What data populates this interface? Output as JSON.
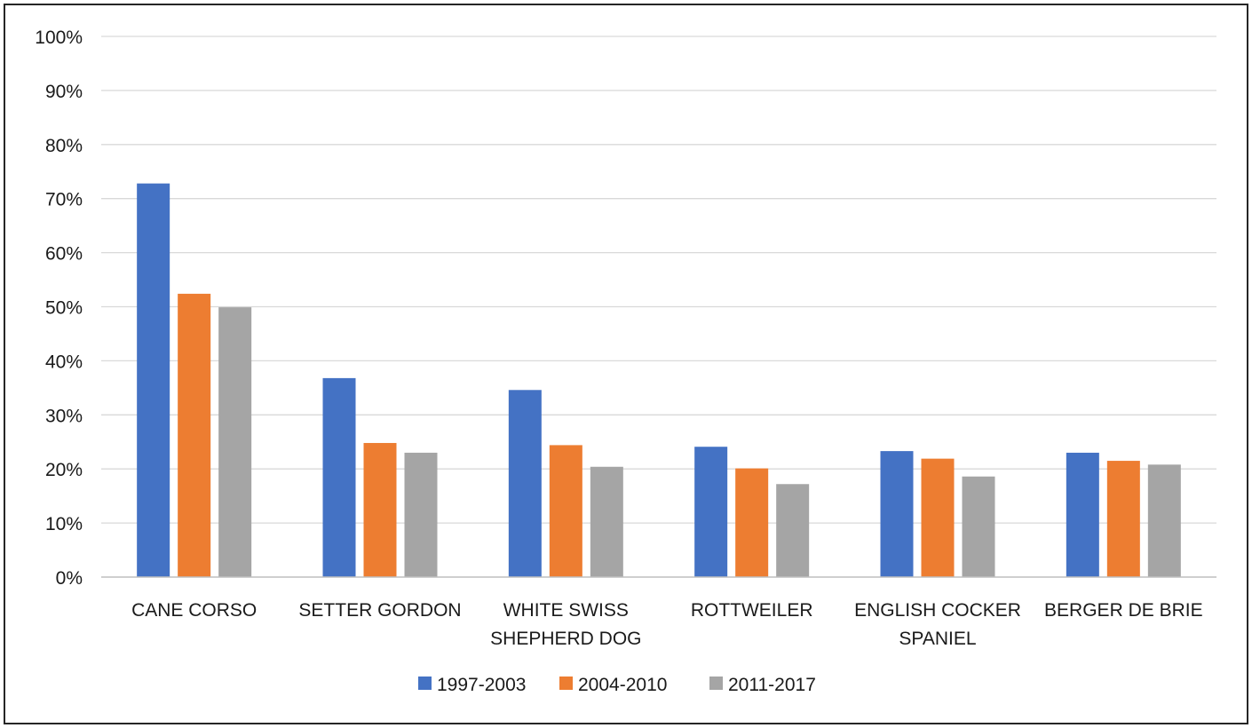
{
  "chart_data": {
    "type": "bar",
    "title": "",
    "xlabel": "",
    "ylabel": "",
    "ylim": [
      0,
      100
    ],
    "y_ticks": [
      "0%",
      "10%",
      "20%",
      "30%",
      "40%",
      "50%",
      "60%",
      "70%",
      "80%",
      "90%",
      "100%"
    ],
    "grid": true,
    "legend_position": "bottom",
    "categories": [
      [
        "CANE CORSO"
      ],
      [
        "SETTER GORDON"
      ],
      [
        "WHITE SWISS",
        "SHEPHERD DOG"
      ],
      [
        "ROTTWEILER"
      ],
      [
        "ENGLISH COCKER",
        "SPANIEL"
      ],
      [
        "BERGER DE BRIE"
      ]
    ],
    "series": [
      {
        "name": "1997-2003",
        "color": "#4472c4",
        "values": [
          72.8,
          36.8,
          34.6,
          24.1,
          23.3,
          23.0
        ]
      },
      {
        "name": "2004-2010",
        "color": "#ed7d31",
        "values": [
          52.4,
          24.8,
          24.4,
          20.1,
          21.9,
          21.5
        ]
      },
      {
        "name": "2011-2017",
        "color": "#a5a5a5",
        "values": [
          49.9,
          23.0,
          20.4,
          17.2,
          18.6,
          20.8
        ]
      }
    ]
  }
}
